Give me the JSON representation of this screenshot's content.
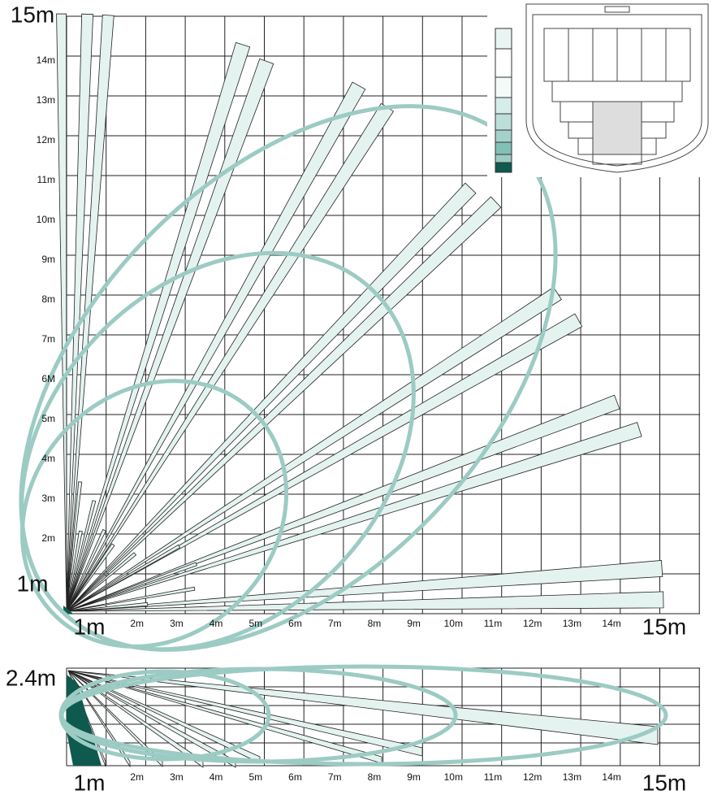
{
  "top_view": {
    "y_labels": [
      "15m",
      "14m",
      "13m",
      "12m",
      "11m",
      "10m",
      "9m",
      "8m",
      "7m",
      "6M",
      "5m",
      "4m",
      "3m",
      "2m",
      "1m"
    ],
    "x_labels": [
      "1m",
      "2m",
      "3m",
      "4m",
      "5m",
      "6m",
      "7m",
      "8m",
      "9m",
      "10m",
      "11m",
      "12m",
      "13m",
      "14m",
      "15m"
    ]
  },
  "side_view": {
    "height_label": "2.4m",
    "x_labels": [
      "1m",
      "2m",
      "3m",
      "4m",
      "5m",
      "6m",
      "7m",
      "8m",
      "9m",
      "10m",
      "11m",
      "12m",
      "13m",
      "14m",
      "15m"
    ]
  }
}
